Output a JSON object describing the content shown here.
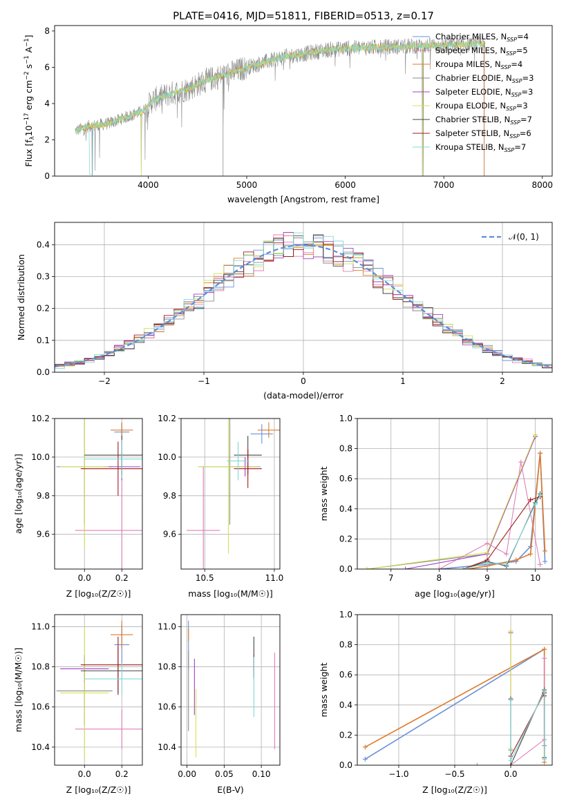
{
  "colors": {
    "chabrier_miles": "#6a8fd8",
    "salpeter_miles": "#e07fb7",
    "kroupa_miles": "#dd7a2a",
    "chabrier_elodie": "#8a8a8a",
    "salpeter_elodie": "#a040c0",
    "kroupa_elodie": "#d4e050",
    "chabrier_stelib": "#444444",
    "salpeter_stelib": "#a01818",
    "kroupa_stelib": "#80d8d8",
    "grid": "#b0b0b0",
    "gaussian": "#5b8dd8"
  },
  "chart_data": [
    {
      "id": "spectrum",
      "type": "line",
      "title": "PLATE=0416, MJD=51811, FIBERID=0513, z=0.17",
      "xlabel": "wavelength [Angstrom, rest frame]",
      "ylabel_parts": [
        "Flux [f",
        "λ",
        "10",
        "−17",
        " erg cm",
        "−2",
        " s",
        "−1",
        " A",
        "−1",
        "]"
      ],
      "xlim": [
        3050,
        8100
      ],
      "ylim": [
        0,
        8.3
      ],
      "xticks": [
        4000,
        5000,
        6000,
        7000,
        8000
      ],
      "yticks": [
        0,
        2,
        4,
        6,
        8
      ],
      "grid": false,
      "legend_position": "top-right",
      "legend": [
        {
          "label": "Chabrier MILES, N",
          "sub": "SSP",
          "suffix": "=4",
          "color_key": "chabrier_miles"
        },
        {
          "label": "Salpeter MILES, N",
          "sub": "SSP",
          "suffix": "=5",
          "color_key": "salpeter_miles"
        },
        {
          "label": "Kroupa MILES, N",
          "sub": "SSP",
          "suffix": "=4",
          "color_key": "kroupa_miles"
        },
        {
          "label": "Chabrier ELODIE, N",
          "sub": "SSP",
          "suffix": "=3",
          "color_key": "chabrier_elodie"
        },
        {
          "label": "Salpeter ELODIE, N",
          "sub": "SSP",
          "suffix": "=3",
          "color_key": "salpeter_elodie"
        },
        {
          "label": "Kroupa ELODIE, N",
          "sub": "SSP",
          "suffix": "=3",
          "color_key": "kroupa_elodie"
        },
        {
          "label": "Chabrier STELIB, N",
          "sub": "SSP",
          "suffix": "=7",
          "color_key": "chabrier_stelib"
        },
        {
          "label": "Salpeter STELIB, N",
          "sub": "SSP",
          "suffix": "=6",
          "color_key": "salpeter_stelib"
        },
        {
          "label": "Kroupa STELIB, N",
          "sub": "SSP",
          "suffix": "=7",
          "color_key": "kroupa_stelib"
        }
      ],
      "continuum": [
        [
          3260,
          2.5
        ],
        [
          3400,
          2.75
        ],
        [
          3600,
          2.9
        ],
        [
          3800,
          3.3
        ],
        [
          3950,
          3.6
        ],
        [
          4050,
          4.2
        ],
        [
          4200,
          4.5
        ],
        [
          4400,
          4.8
        ],
        [
          4600,
          5.3
        ],
        [
          4800,
          5.6
        ],
        [
          5000,
          6.0
        ],
        [
          5200,
          6.3
        ],
        [
          5400,
          6.6
        ],
        [
          5600,
          6.75
        ],
        [
          5800,
          6.95
        ],
        [
          6000,
          7.05
        ],
        [
          6300,
          7.1
        ],
        [
          6600,
          7.15
        ],
        [
          6900,
          7.2
        ],
        [
          7200,
          7.25
        ],
        [
          7420,
          7.3
        ]
      ],
      "spikes": [
        [
          3430,
          0
        ],
        [
          3460,
          0.3
        ],
        [
          3505,
          1.0
        ],
        [
          3930,
          0.2
        ],
        [
          3968,
          0.9
        ],
        [
          4340,
          2.7
        ],
        [
          4760,
          2.8
        ],
        [
          6782,
          0
        ],
        [
          6790,
          0
        ],
        [
          7410,
          0
        ]
      ]
    },
    {
      "id": "residuals",
      "type": "histogram",
      "xlabel": "(data-model)/error",
      "ylabel": "Normed distribution",
      "xlim": [
        -2.5,
        2.5
      ],
      "ylim": [
        0,
        0.47
      ],
      "xticks": [
        -2,
        -1,
        0,
        1,
        2
      ],
      "yticks": [
        0.0,
        0.1,
        0.2,
        0.3,
        0.4
      ],
      "grid": true,
      "legend_position": "top-right",
      "gaussian_label": "𝒩(0, 1)",
      "bin_width": 0.1
    },
    {
      "id": "age_vs_Z",
      "type": "scatter",
      "xlabel": "Z [log₁₀(Z/Z☉)]",
      "ylabel": "age  [log₁₀(age/yr)]",
      "xlim": [
        -0.16,
        0.31
      ],
      "ylim": [
        9.42,
        10.2
      ],
      "xticks": [
        0.0,
        0.2
      ],
      "yticks": [
        9.6,
        9.8,
        10.0,
        10.2
      ],
      "grid": true,
      "points": [
        {
          "c": "chabrier_miles",
          "x": 0.2,
          "y": 10.13,
          "xe": 0.04,
          "ye": 0.05
        },
        {
          "c": "salpeter_miles",
          "x": 0.2,
          "y": 9.62,
          "xe": 0.25,
          "ye": 0.4
        },
        {
          "c": "kroupa_miles",
          "x": 0.2,
          "y": 10.14,
          "xe": 0.06,
          "ye": 0.04
        },
        {
          "c": "chabrier_elodie",
          "x": 0.0,
          "y": 9.95,
          "xe": 0.15,
          "ye": 0.3
        },
        {
          "c": "salpeter_elodie",
          "x": 0.2,
          "y": 9.95,
          "xe": 0.1,
          "ye": 0.07
        },
        {
          "c": "kroupa_elodie",
          "x": 0.0,
          "y": 9.95,
          "xe": 0.13,
          "ye": 0.42
        },
        {
          "c": "chabrier_stelib",
          "x": 0.2,
          "y": 10.01,
          "xe": 0.2,
          "ye": 0.1
        },
        {
          "c": "salpeter_stelib",
          "x": 0.18,
          "y": 9.94,
          "xe": 0.2,
          "ye": 0.14
        },
        {
          "c": "kroupa_stelib",
          "x": 0.2,
          "y": 9.99,
          "xe": 0.2,
          "ye": 0.1
        }
      ]
    },
    {
      "id": "age_vs_mass",
      "type": "scatter",
      "xlabel": "mass [log₁₀(M/M☉)]",
      "ylabel": "",
      "xlim": [
        10.33,
        11.04
      ],
      "ylim": [
        9.42,
        10.2
      ],
      "xticks": [
        10.5,
        11.0
      ],
      "yticks": [
        9.6,
        9.8,
        10.0,
        10.2
      ],
      "grid": true,
      "points": [
        {
          "c": "chabrier_miles",
          "x": 10.91,
          "y": 10.12,
          "xe": 0.08,
          "ye": 0.05
        },
        {
          "c": "salpeter_miles",
          "x": 10.49,
          "y": 9.62,
          "xe": 0.12,
          "ye": 0.33
        },
        {
          "c": "kroupa_miles",
          "x": 10.96,
          "y": 10.14,
          "xe": 0.08,
          "ye": 0.04
        },
        {
          "c": "chabrier_elodie",
          "x": 10.68,
          "y": 9.95,
          "xe": 0.22,
          "ye": 0.3
        },
        {
          "c": "salpeter_elodie",
          "x": 10.79,
          "y": 9.95,
          "xe": 0.1,
          "ye": 0.05
        },
        {
          "c": "kroupa_elodie",
          "x": 10.67,
          "y": 9.95,
          "xe": 0.22,
          "ye": 0.45
        },
        {
          "c": "chabrier_stelib",
          "x": 10.81,
          "y": 10.01,
          "xe": 0.1,
          "ye": 0.1
        },
        {
          "c": "salpeter_stelib",
          "x": 10.81,
          "y": 9.94,
          "xe": 0.1,
          "ye": 0.1
        },
        {
          "c": "kroupa_stelib",
          "x": 10.74,
          "y": 9.98,
          "xe": 0.08,
          "ye": 0.1
        }
      ]
    },
    {
      "id": "weight_vs_age",
      "type": "line",
      "xlabel": "age  [log₁₀(age/yr)]",
      "ylabel": "mass weight",
      "xlim": [
        6.3,
        10.35
      ],
      "ylim": [
        0,
        1.0
      ],
      "xticks": [
        7,
        8,
        9,
        10
      ],
      "yticks": [
        0.0,
        0.2,
        0.4,
        0.6,
        0.8,
        1.0
      ],
      "grid": true,
      "series": [
        {
          "c": "chabrier_miles",
          "x": [
            8.0,
            9.0,
            9.6,
            9.9,
            10.1,
            10.2
          ],
          "y": [
            0.0,
            0.03,
            0.05,
            0.15,
            0.77,
            0.05
          ]
        },
        {
          "c": "salpeter_miles",
          "x": [
            8.0,
            9.0,
            9.4,
            9.7,
            10.1
          ],
          "y": [
            0.0,
            0.17,
            0.1,
            0.71,
            0.03
          ]
        },
        {
          "c": "kroupa_miles",
          "x": [
            8.6,
            9.0,
            9.6,
            9.9,
            10.1,
            10.2
          ],
          "y": [
            0.0,
            0.02,
            0.06,
            0.1,
            0.77,
            0.12
          ]
        },
        {
          "c": "chabrier_elodie",
          "x": [
            6.5,
            9.0,
            10.0
          ],
          "y": [
            0.0,
            0.1,
            0.89
          ]
        },
        {
          "c": "salpeter_elodie",
          "x": [
            7.3,
            9.0,
            10.0
          ],
          "y": [
            0.0,
            0.1,
            0.88
          ]
        },
        {
          "c": "kroupa_elodie",
          "x": [
            6.5,
            9.0,
            10.0
          ],
          "y": [
            0.0,
            0.11,
            0.89
          ]
        },
        {
          "c": "chabrier_stelib",
          "x": [
            8.5,
            9.0,
            9.4,
            10.0,
            10.1
          ],
          "y": [
            0.0,
            0.05,
            0.02,
            0.44,
            0.5
          ]
        },
        {
          "c": "salpeter_stelib",
          "x": [
            8.5,
            9.0,
            9.9,
            10.1
          ],
          "y": [
            0.0,
            0.06,
            0.46,
            0.48
          ]
        },
        {
          "c": "kroupa_stelib",
          "x": [
            8.5,
            9.0,
            9.4,
            10.0,
            10.1
          ],
          "y": [
            0.0,
            0.04,
            0.03,
            0.43,
            0.49
          ]
        }
      ]
    },
    {
      "id": "mass_vs_Z",
      "type": "scatter",
      "xlabel": "Z [log₁₀(Z/Z☉)]",
      "ylabel": "mass [log₁₀(M/M☉)]",
      "xlim": [
        -0.16,
        0.31
      ],
      "ylim": [
        10.31,
        11.06
      ],
      "xticks": [
        0.0,
        0.2
      ],
      "yticks": [
        10.4,
        10.6,
        10.8,
        11.0
      ],
      "grid": true,
      "points": [
        {
          "c": "chabrier_miles",
          "x": 0.2,
          "y": 10.91,
          "xe": 0.04,
          "ye": 0.1
        },
        {
          "c": "salpeter_miles",
          "x": 0.2,
          "y": 10.49,
          "xe": 0.25,
          "ye": 0.1
        },
        {
          "c": "kroupa_miles",
          "x": 0.2,
          "y": 10.96,
          "xe": 0.06,
          "ye": 0.07
        },
        {
          "c": "chabrier_elodie",
          "x": 0.0,
          "y": 10.68,
          "xe": 0.15,
          "ye": 0.17
        },
        {
          "c": "salpeter_elodie",
          "x": 0.0,
          "y": 10.79,
          "xe": 0.13,
          "ye": 0.07
        },
        {
          "c": "kroupa_elodie",
          "x": 0.0,
          "y": 10.67,
          "xe": 0.13,
          "ye": 0.33
        },
        {
          "c": "chabrier_stelib",
          "x": 0.18,
          "y": 10.78,
          "xe": 0.2,
          "ye": 0.12
        },
        {
          "c": "salpeter_stelib",
          "x": 0.18,
          "y": 10.81,
          "xe": 0.2,
          "ye": 0.14
        },
        {
          "c": "kroupa_stelib",
          "x": 0.2,
          "y": 10.74,
          "xe": 0.2,
          "ye": 0.08
        }
      ]
    },
    {
      "id": "mass_vs_ebv",
      "type": "scatter",
      "xlabel": "E(B-V)",
      "ylabel": "",
      "xlim": [
        -0.008,
        0.125
      ],
      "ylim": [
        10.31,
        11.06
      ],
      "xticks": [
        0.0,
        0.05,
        0.1
      ],
      "yticks": [
        10.4,
        10.6,
        10.8,
        11.0
      ],
      "grid": true,
      "points": [
        {
          "c": "chabrier_miles",
          "x": 0.002,
          "y": 10.91,
          "xe": 0,
          "ye": 0.12
        },
        {
          "c": "salpeter_miles",
          "x": 0.118,
          "y": 10.63,
          "xe": 0,
          "ye": 0.24
        },
        {
          "c": "kroupa_miles",
          "x": 0.002,
          "y": 10.96,
          "xe": 0,
          "ye": 0.03
        },
        {
          "c": "chabrier_elodie",
          "x": 0.002,
          "y": 10.68,
          "xe": 0,
          "ye": 0.2
        },
        {
          "c": "salpeter_elodie",
          "x": 0.01,
          "y": 10.7,
          "xe": 0,
          "ye": 0.14
        },
        {
          "c": "kroupa_elodie",
          "x": 0.012,
          "y": 10.52,
          "xe": 0,
          "ye": 0.17
        },
        {
          "c": "chabrier_stelib",
          "x": 0.09,
          "y": 10.85,
          "xe": 0,
          "ye": 0.1
        },
        {
          "c": "salpeter_stelib",
          "x": 0.09,
          "y": 10.8,
          "xe": 0,
          "ye": 0.06
        },
        {
          "c": "kroupa_stelib",
          "x": 0.09,
          "y": 10.7,
          "xe": 0,
          "ye": 0.15
        }
      ]
    },
    {
      "id": "weight_vs_Z",
      "type": "line",
      "xlabel": "Z [log₁₀(Z/Z☉)]",
      "ylabel": "mass weight",
      "xlim": [
        -1.37,
        0.37
      ],
      "ylim": [
        0,
        1.0
      ],
      "xticks": [
        -1.0,
        -0.5,
        0.0
      ],
      "yticks": [
        0.0,
        0.2,
        0.4,
        0.6,
        0.8,
        1.0
      ],
      "grid": true,
      "series": [
        {
          "c": "chabrier_miles",
          "x": [
            -1.3,
            0.3,
            0.3
          ],
          "y": [
            0.04,
            0.77,
            0.13
          ]
        },
        {
          "c": "kroupa_miles",
          "x": [
            -1.3,
            0.3,
            0.3
          ],
          "y": [
            0.12,
            0.77,
            0.02
          ]
        },
        {
          "c": "salpeter_miles",
          "x": [
            -0.3,
            0.0,
            0.3,
            0.3
          ],
          "y": [
            0.0,
            0.0,
            0.17,
            0.71
          ]
        },
        {
          "c": "chabrier_elodie",
          "x": [
            0.0,
            0.0,
            0.0
          ],
          "y": [
            0.1,
            0.89,
            0.0
          ]
        },
        {
          "c": "salpeter_elodie",
          "x": [
            0.0,
            0.0
          ],
          "y": [
            0.0,
            0.88
          ]
        },
        {
          "c": "kroupa_elodie",
          "x": [
            0.0,
            0.0,
            0.0
          ],
          "y": [
            0.11,
            0.89,
            0.0
          ]
        },
        {
          "c": "chabrier_stelib",
          "x": [
            0.0,
            0.0,
            0.3,
            0.3
          ],
          "y": [
            0.44,
            0.0,
            0.5,
            0.05
          ]
        },
        {
          "c": "salpeter_stelib",
          "x": [
            0.0,
            0.0,
            0.3,
            0.3
          ],
          "y": [
            0.0,
            0.06,
            0.48,
            0.46
          ]
        },
        {
          "c": "kroupa_stelib",
          "x": [
            0.0,
            0.0,
            0.3,
            0.3
          ],
          "y": [
            0.43,
            0.03,
            0.49,
            0.04
          ]
        }
      ]
    }
  ]
}
